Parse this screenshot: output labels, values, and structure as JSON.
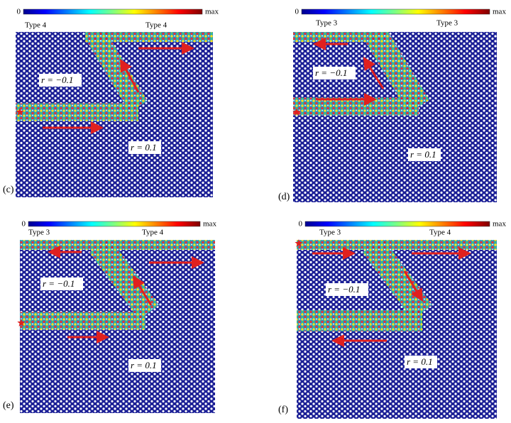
{
  "panels": [
    {
      "label": "(c)",
      "colorbar_min": "0",
      "colorbar_max": "max",
      "type_left": "Type 4",
      "type_right": "Type 4",
      "r_upper": "r = −0.1",
      "r_lower": "r = 0.1"
    },
    {
      "label": "(d)",
      "colorbar_min": "0",
      "colorbar_max": "max",
      "type_left": "Type 3",
      "type_right": "Type 3",
      "r_upper": "r = −0.1",
      "r_lower": "r = 0.1"
    },
    {
      "label": "(e)",
      "colorbar_min": "0",
      "colorbar_max": "max",
      "type_left": "Type 3",
      "type_right": "Type 4",
      "r_upper": "r = −0.1",
      "r_lower": "r = 0.1"
    },
    {
      "label": "(f)",
      "colorbar_min": "0",
      "colorbar_max": "max",
      "type_left": "Type 3",
      "type_right": "Type 4",
      "r_upper": "r = −0.1",
      "r_lower": "r = 0.1"
    }
  ]
}
